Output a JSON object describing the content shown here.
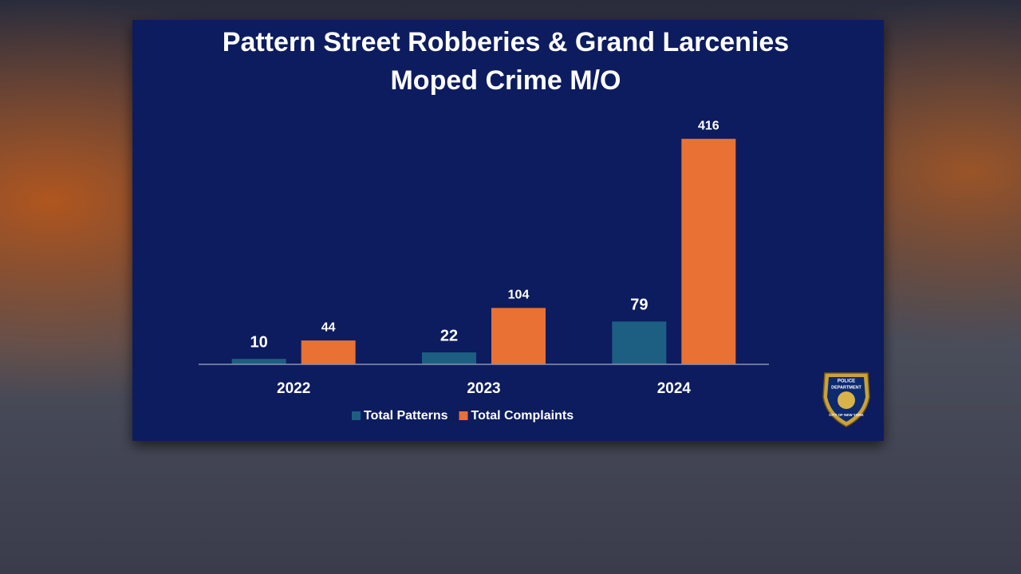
{
  "chart_data": {
    "type": "bar",
    "title": "Pattern Street Robberies & Grand Larcenies",
    "subtitle": "Moped Crime M/O",
    "categories": [
      "2022",
      "2023",
      "2024"
    ],
    "series": [
      {
        "name": "Total Patterns",
        "color": "#1d5f82",
        "values": [
          10,
          22,
          79
        ]
      },
      {
        "name": "Total Complaints",
        "color": "#e87133",
        "values": [
          44,
          104,
          416
        ]
      }
    ],
    "ylim": [
      0,
      450
    ],
    "legend": "bottom"
  },
  "logo": {
    "top": "POLICE",
    "middle": "DEPARTMENT",
    "ring": "CITY OF NEW YORK"
  }
}
